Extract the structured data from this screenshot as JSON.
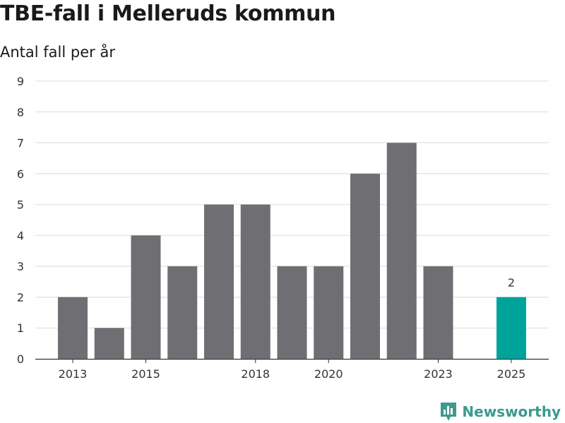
{
  "title": "TBE-fall i Melleruds kommun",
  "subtitle": "Antal fall per år",
  "brand": {
    "name": "Newsworthy",
    "icon": "newsworthy-logo-icon"
  },
  "colors": {
    "bar": "#6f6e73",
    "highlight": "#00a399",
    "grid": "#dcdcdc",
    "axis": "#333333",
    "brand": "#3d9a8f"
  },
  "chart_data": {
    "type": "bar",
    "title": "TBE-fall i Melleruds kommun",
    "subtitle": "Antal fall per år",
    "xlabel": "",
    "ylabel": "",
    "categories": [
      "2013",
      "2014",
      "2015",
      "2016",
      "2017",
      "2018",
      "2019",
      "2020",
      "2021",
      "2022",
      "2023",
      "2024",
      "2025"
    ],
    "values": [
      2,
      1,
      4,
      3,
      5,
      5,
      3,
      3,
      6,
      7,
      3,
      null,
      2
    ],
    "highlight_index": 12,
    "data_labels": [
      {
        "index": 12,
        "text": "2"
      }
    ],
    "x_tick_labels": [
      "2013",
      "2015",
      "2018",
      "2020",
      "2023",
      "2025"
    ],
    "y_ticks": [
      0,
      1,
      2,
      3,
      4,
      5,
      6,
      7,
      8,
      9
    ],
    "ylim": [
      0,
      9
    ],
    "grid": true
  }
}
